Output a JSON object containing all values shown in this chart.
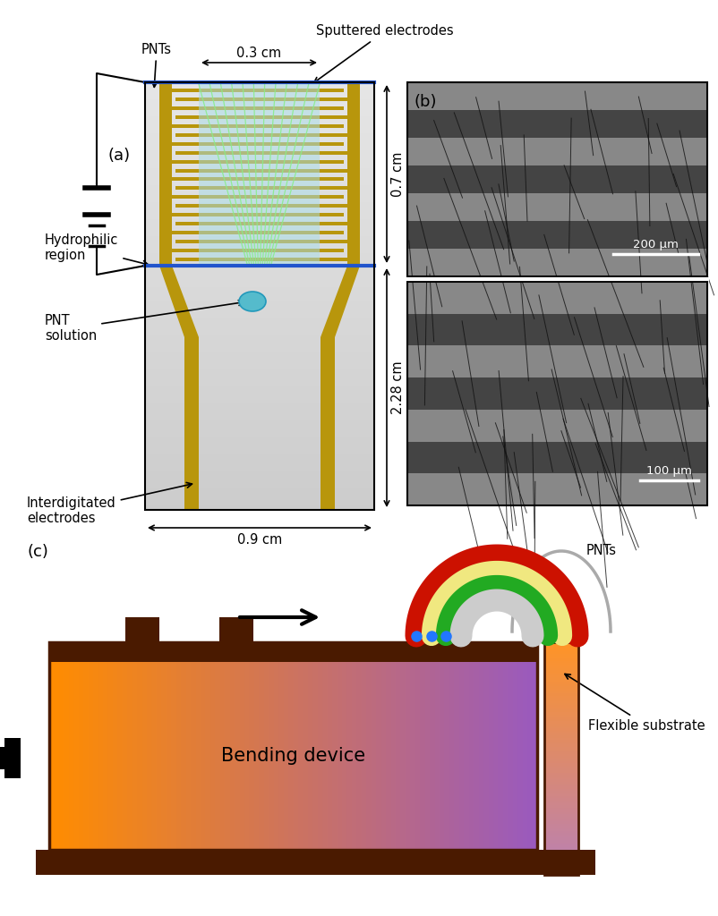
{
  "fig_width": 8.02,
  "fig_height": 10.24,
  "bg_color": "#ffffff",
  "electrode_color": "#b8960c",
  "blue_line_color": "#2255cc",
  "cyan_fill": "#a8dde8",
  "green_lines_color": "#90ee90",
  "label_a": "(a)",
  "label_b": "(b)",
  "label_c": "(c)",
  "text_PNTs": "PNTs",
  "text_sputtered": "Sputtered electrodes",
  "text_03cm": "0.3 cm",
  "text_07cm": "0.7 cm",
  "text_228cm": "2.28 cm",
  "text_09cm": "0.9 cm",
  "text_hydrophilic": "Hydrophilic\nregion",
  "text_PNT_solution": "PNT\nsolution",
  "text_interdigitated": "Interdigitated\nelectrodes",
  "text_200um": "200 μm",
  "text_100um": "100 μm",
  "text_flexible": "Flexible substrate",
  "text_bending": "Bending device",
  "brown_color": "#4a1a00",
  "brown_border": "#5c2800"
}
